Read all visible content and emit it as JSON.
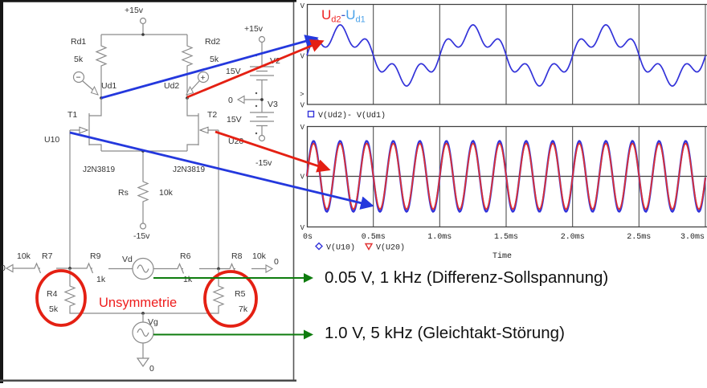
{
  "schematic": {
    "supply_top": "+15v",
    "rd1": "Rd1",
    "rd1_val": "5k",
    "rd2": "Rd2",
    "rd2_val": "5k",
    "probe_minus": "−",
    "probe_plus": "+",
    "ud1": "Ud1",
    "ud2": "Ud2",
    "t1": "T1",
    "t2": "T2",
    "u10": "U10",
    "u20": "U20",
    "jfet_type": "J2N3819",
    "rs": "Rs",
    "rs_val": "10k",
    "vee_mid": "-15v",
    "supply_right": "+15v",
    "v2": "V2",
    "v2_val": "15V",
    "gnd_mid": "0",
    "v3": "V3",
    "v3_val": "15V",
    "vee_right": "-15v",
    "gnd_left": "0",
    "r7": "R7",
    "r7_val": "10k",
    "r9": "R9",
    "r9_val": "1k",
    "vd": "Vd",
    "r6": "R6",
    "r6_val": "1k",
    "r8": "R8",
    "r8_val": "10k",
    "gnd_right": "0",
    "r4": "R4",
    "r4_val": "5k",
    "r5": "R5",
    "r5_val": "7k",
    "unsymmetrie": "Unsymmetrie",
    "vg": "Vg",
    "gnd_bottom": "0"
  },
  "plots": {
    "title": {
      "u": "U",
      "sub_red": "d2",
      "dash": "-",
      "sub_blue": "d1"
    },
    "legend1": "V(Ud2)- V(Ud1)",
    "legend2_blue": "V(U10)",
    "legend2_red": "V(U20)",
    "xticks": [
      "0s",
      "0.5ms",
      "1.0ms",
      "1.5ms",
      "2.0ms",
      "2.5ms",
      "3.0ms"
    ],
    "xlabel": "Time",
    "ytick_fragment": "V",
    "sel_fragment": ">"
  },
  "annotations": {
    "line1": "0.05 V, 1 kHz (Differenz-Sollspannung)",
    "line2": "1.0 V, 5 kHz (Gleichtakt-Störung)"
  },
  "colors": {
    "trace_blue": "#3333d9",
    "trace_red": "#e03030",
    "annotation_red": "#e42013",
    "annotation_blue": "#2438dd",
    "annotation_green": "#0e7c0e",
    "title_red": "#ee2222",
    "title_dash_blue": "#3a56c8",
    "title_light_blue": "#49a1e9",
    "schematic_gray": "#8a8a8a"
  },
  "chart_data": [
    {
      "type": "line",
      "title": "Ud2-Ud1",
      "xlabel": "Time",
      "x_unit": "ms",
      "x_range": [
        0,
        3
      ],
      "x_ticks": [
        "0s",
        "0.5ms",
        "1.0ms",
        "1.5ms",
        "2.0ms",
        "2.5ms",
        "3.0ms"
      ],
      "y_tick_labels": "clipped at image edge (V)",
      "grid": true,
      "legend_pos": "below",
      "series": [
        {
          "name": "V(Ud2)- V(Ud1)",
          "color": "#3333d9",
          "waveform": "1 kHz fundamental with superimposed 5 kHz component",
          "components": [
            {
              "freq_khz": 1,
              "rel_amp": 1.0
            },
            {
              "freq_khz": 5,
              "rel_amp": 0.41
            }
          ]
        }
      ]
    },
    {
      "type": "line",
      "xlabel": "Time",
      "x_unit": "ms",
      "x_range": [
        0,
        3
      ],
      "x_ticks": [
        "0s",
        "0.5ms",
        "1.0ms",
        "1.5ms",
        "2.0ms",
        "2.5ms",
        "3.0ms"
      ],
      "grid": true,
      "legend_pos": "below",
      "series": [
        {
          "name": "V(U10)",
          "color": "#3333d9",
          "freq_khz": 5,
          "rel_amp": 1.0
        },
        {
          "name": "V(U20)",
          "color": "#e03030",
          "freq_khz": 5,
          "rel_amp": 0.93
        }
      ]
    }
  ]
}
